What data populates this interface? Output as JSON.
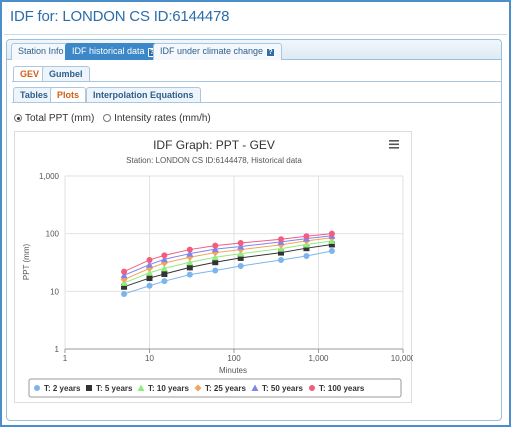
{
  "page": {
    "title": "IDF for: LONDON CS ID:6144478"
  },
  "tabs": [
    {
      "label": "Station Info",
      "active": false,
      "help": false
    },
    {
      "label": "IDF historical data",
      "active": true,
      "help": true
    },
    {
      "label": "IDF under climate change",
      "active": false,
      "help": true
    }
  ],
  "help_glyph": "?",
  "method_tabs": [
    {
      "label": "GEV",
      "active": true
    },
    {
      "label": "Gumbel",
      "active": false
    }
  ],
  "view_tabs": [
    {
      "label": "Tables",
      "active": false
    },
    {
      "label": "Plots",
      "active": true
    },
    {
      "label": "Interpolation Equations",
      "active": false
    }
  ],
  "radio_options": [
    {
      "label": "Total PPT (mm)",
      "checked": true
    },
    {
      "label": "Intensity rates (mm/h)",
      "checked": false
    }
  ],
  "chart_data": {
    "type": "line",
    "title": "IDF Graph: PPT - GEV",
    "subtitle": "Station: LONDON CS ID:6144478, Historical data",
    "xlabel": "Minutes",
    "ylabel": "PPT (mm)",
    "x_scale": "log",
    "y_scale": "log",
    "xlim": [
      1,
      10000
    ],
    "ylim": [
      1,
      1000
    ],
    "x_ticks": [
      "1",
      "10",
      "100",
      "1,000",
      "10,000"
    ],
    "y_ticks": [
      "1",
      "10",
      "100",
      "1,000"
    ],
    "legend_position": "bottom",
    "x": [
      5,
      10,
      15,
      30,
      60,
      120,
      360,
      720,
      1440
    ],
    "series": [
      {
        "name": "T: 2 years",
        "color": "#7cb5ec",
        "marker": "circle",
        "values": [
          9,
          12.5,
          15,
          19.5,
          23,
          27.5,
          35,
          41,
          50
        ]
      },
      {
        "name": "T: 5 years",
        "color": "#333333",
        "marker": "square",
        "values": [
          12,
          17,
          20,
          26,
          32,
          38,
          47,
          56,
          65
        ]
      },
      {
        "name": "T: 10 years",
        "color": "#90ed7d",
        "marker": "triangle",
        "values": [
          14,
          21,
          25,
          32,
          39,
          45,
          55,
          65,
          75
        ]
      },
      {
        "name": "T: 25 years",
        "color": "#f7a35c",
        "marker": "diamond",
        "values": [
          16,
          25,
          31,
          39,
          47,
          53,
          64,
          75,
          85
        ]
      },
      {
        "name": "T: 50 years",
        "color": "#8085e9",
        "marker": "triangle",
        "values": [
          19,
          29,
          36,
          45,
          54,
          60,
          72,
          82,
          92
        ]
      },
      {
        "name": "T: 100 years",
        "color": "#f15c80",
        "marker": "circle",
        "values": [
          22,
          35,
          42,
          53,
          62,
          69,
          80,
          90,
          100
        ]
      }
    ]
  }
}
